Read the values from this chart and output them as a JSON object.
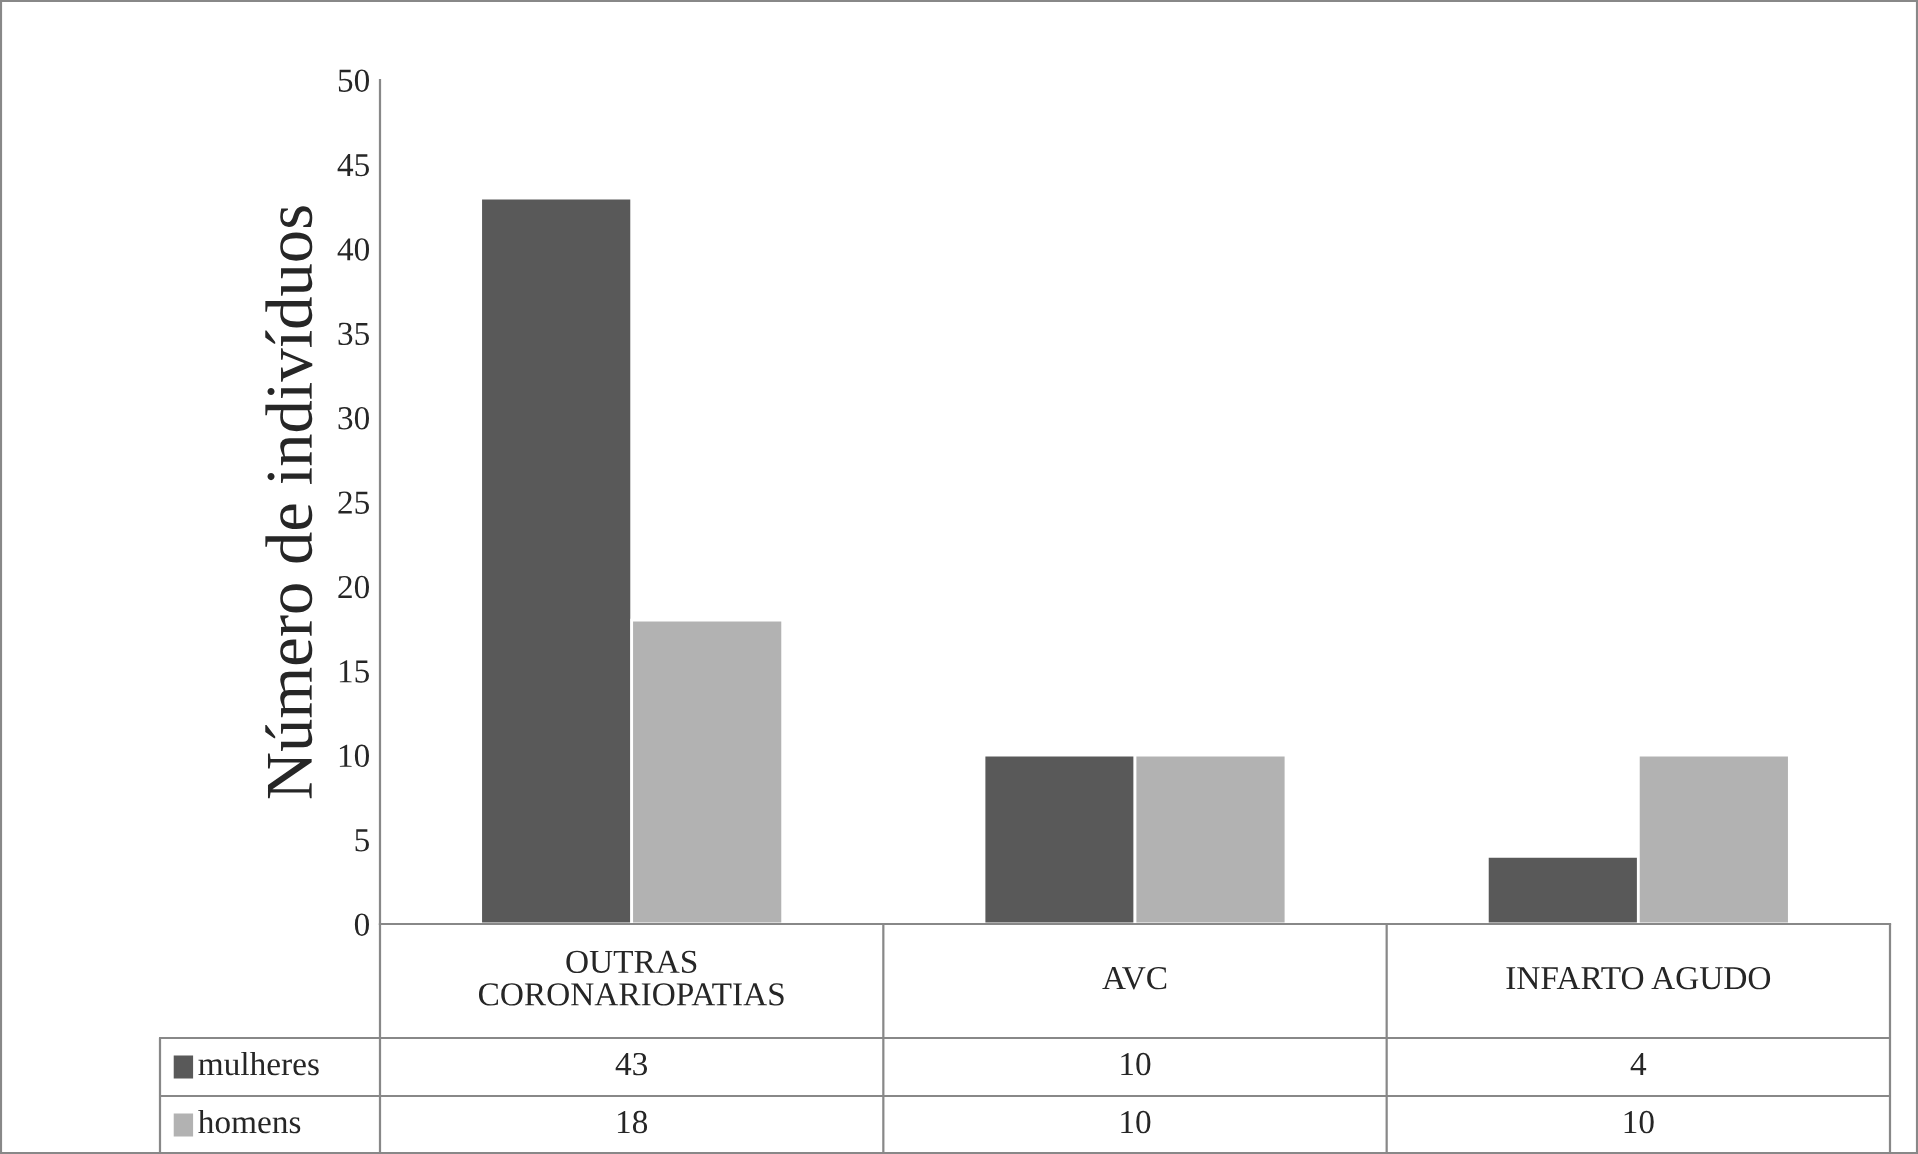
{
  "chart_data": {
    "type": "bar",
    "ylabel": "Número de indivíduos",
    "categories": [
      "OUTRAS\nCORONARIOPATIAS",
      "AVC",
      "INFARTO AGUDO"
    ],
    "series": [
      {
        "name": "mulheres",
        "color": "#595959",
        "values": [
          43,
          10,
          4
        ]
      },
      {
        "name": "homens",
        "color": "#b2b2b2",
        "values": [
          18,
          10,
          10
        ]
      }
    ],
    "ylim": [
      0,
      50
    ],
    "yticks": [
      0,
      5,
      10,
      15,
      20,
      25,
      30,
      35,
      40,
      45,
      50
    ],
    "grid": false,
    "legend": "bottom left",
    "data_labels": true
  }
}
